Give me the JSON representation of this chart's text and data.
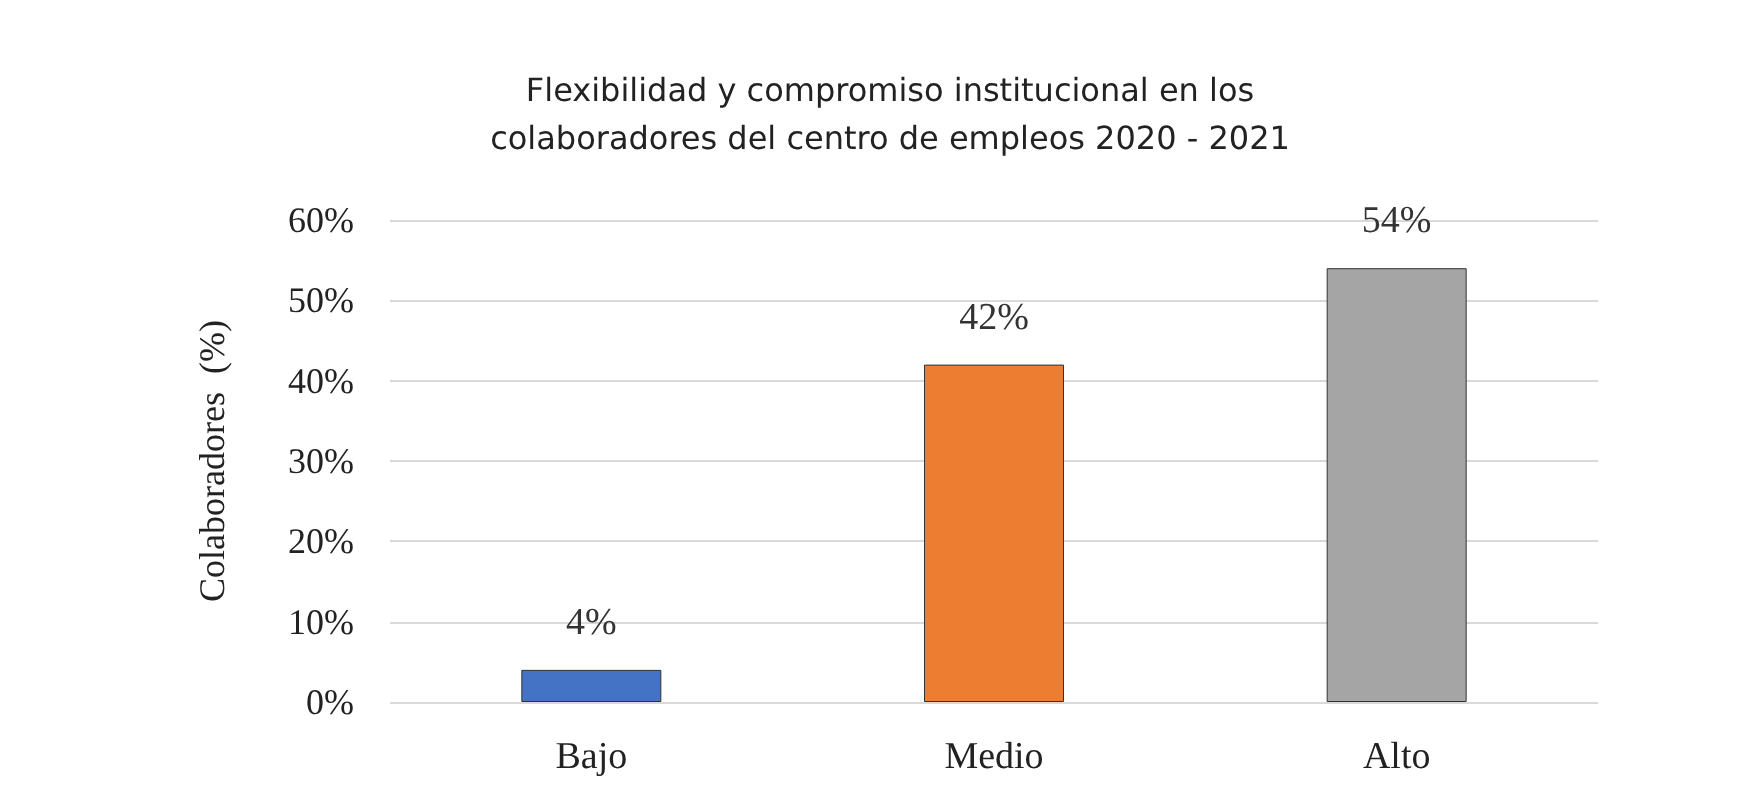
{
  "chart_data": {
    "type": "bar",
    "title": "Flexibilidad y compromiso institucional en los\ncolaboradores del centro de empleos 2020 - 2021",
    "ylabel": "Colaboradores  (%)",
    "categories": [
      "Bajo",
      "Medio",
      "Alto"
    ],
    "values": [
      4,
      42,
      54
    ],
    "colors": [
      "#4472c4",
      "#ed7d31",
      "#a5a5a5"
    ],
    "value_labels": [
      "4%",
      "42%",
      "54%"
    ],
    "ylim": [
      0,
      60
    ],
    "yticks": [
      {
        "value": 0,
        "label": "0%"
      },
      {
        "value": 10,
        "label": "10%"
      },
      {
        "value": 20,
        "label": "20%"
      },
      {
        "value": 30,
        "label": "30%"
      },
      {
        "value": 40,
        "label": "40%"
      },
      {
        "value": 50,
        "label": "50%"
      },
      {
        "value": 60,
        "label": "60%"
      }
    ],
    "grid": "y"
  }
}
